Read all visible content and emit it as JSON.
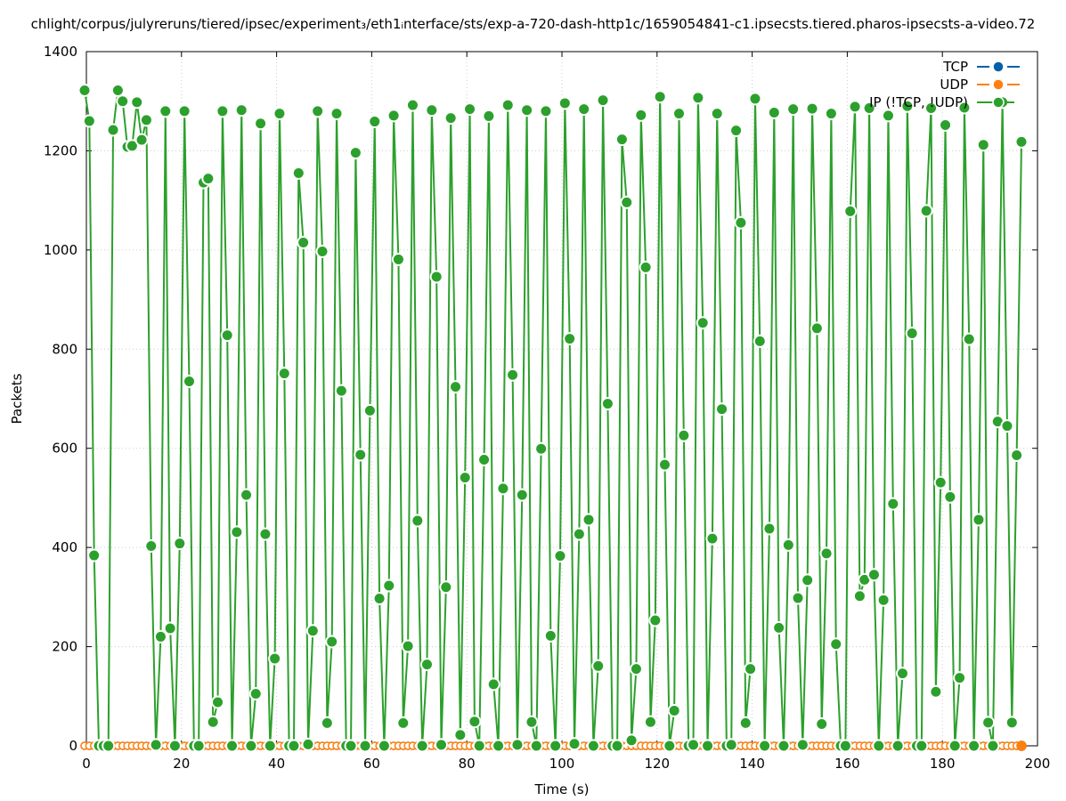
{
  "chart_data": {
    "type": "line",
    "title": "chlight/corpus/julyreruns/tiered/ipsec/experiment₃/eth1ᵢnterface/sts/exp-a-720-dash-http1c/1659054841-c1.ipsecsts.tiered.pharos-ipsecsts-a-video.72",
    "xlabel": "Time (s)",
    "ylabel": "Packets",
    "xlim": [
      0,
      200
    ],
    "ylim": [
      0,
      1400
    ],
    "xticks": [
      0,
      20,
      40,
      60,
      80,
      100,
      120,
      140,
      160,
      180,
      200
    ],
    "yticks": [
      0,
      200,
      400,
      600,
      800,
      1000,
      1200,
      1400
    ],
    "grid": true,
    "legend_position": "top-right",
    "x_step": 1,
    "series": [
      {
        "name": "TCP",
        "color": "#0060ad",
        "values": "zeros"
      },
      {
        "name": "UDP",
        "color": "#ff7f0e",
        "values": "zeros"
      },
      {
        "name": "IP (!TCP, !UDP)",
        "color": "#2ca02c",
        "values": [
          1322,
          1260,
          384,
          0,
          0,
          0,
          1242,
          1322,
          1300,
          1208,
          1210,
          1298,
          1222,
          1262,
          403,
          2,
          220,
          1280,
          237,
          0,
          408,
          1280,
          735,
          0,
          0,
          1136,
          1144,
          48,
          88,
          1280,
          828,
          0,
          431,
          1282,
          506,
          0,
          105,
          1255,
          427,
          0,
          176,
          1275,
          751,
          0,
          0,
          1155,
          1015,
          3,
          232,
          1280,
          997,
          46,
          210,
          1275,
          716,
          0,
          0,
          1196,
          587,
          0,
          676,
          1259,
          297,
          0,
          323,
          1271,
          981,
          46,
          201,
          1292,
          454,
          0,
          164,
          1282,
          946,
          2,
          320,
          1266,
          724,
          22,
          541,
          1284,
          49,
          0,
          577,
          1270,
          124,
          0,
          519,
          1292,
          748,
          2,
          506,
          1282,
          48,
          0,
          599,
          1280,
          222,
          0,
          383,
          1296,
          821,
          4,
          427,
          1284,
          456,
          0,
          161,
          1302,
          690,
          0,
          0,
          1223,
          1096,
          11,
          155,
          1272,
          965,
          48,
          253,
          1309,
          567,
          0,
          71,
          1275,
          626,
          0,
          2,
          1307,
          853,
          0,
          418,
          1275,
          679,
          0,
          2,
          1241,
          1055,
          46,
          155,
          1305,
          816,
          0,
          438,
          1277,
          238,
          0,
          405,
          1284,
          298,
          2,
          334,
          1285,
          842,
          44,
          388,
          1275,
          205,
          0,
          0,
          1078,
          1289,
          302,
          335,
          1286,
          345,
          0,
          294,
          1271,
          488,
          0,
          146,
          1290,
          832,
          0,
          0,
          1079,
          1286,
          109,
          531,
          1252,
          502,
          0,
          137,
          1287,
          820,
          0,
          456,
          1212,
          47,
          0,
          654,
          1298,
          645,
          47,
          586,
          1218
        ]
      }
    ]
  }
}
